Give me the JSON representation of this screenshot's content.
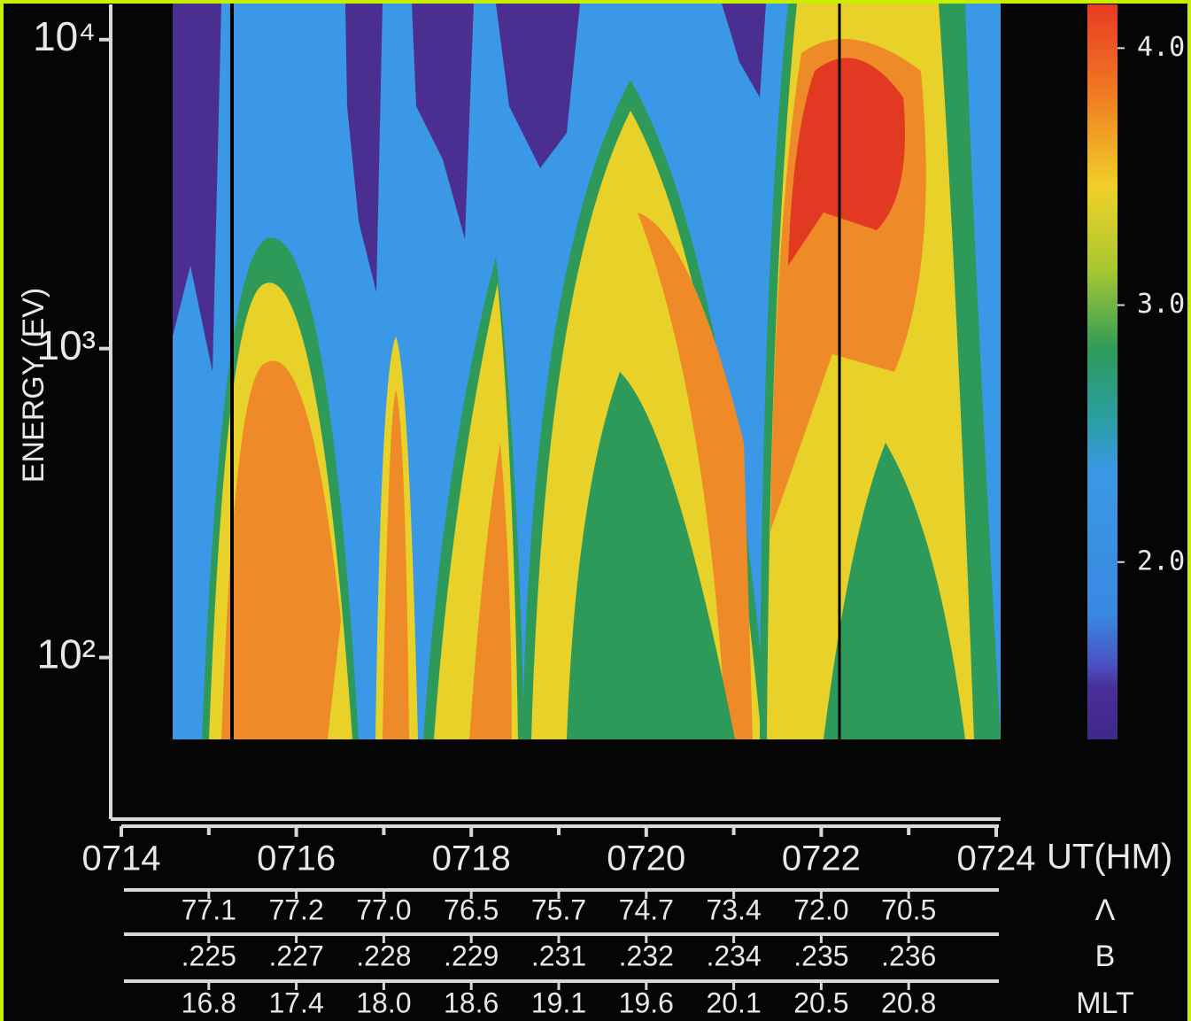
{
  "chart_data": {
    "type": "spectrogram",
    "ylabel": "ENERGY (EV)",
    "xlabel": "UT(HM)",
    "log_y": true,
    "ylim": [
      30,
      13000
    ],
    "yticks": [
      {
        "value": 100,
        "label": "10²"
      },
      {
        "value": 1000,
        "label": "10³"
      },
      {
        "value": 10000,
        "label": "10⁴"
      }
    ],
    "xlim": [
      714,
      724
    ],
    "xticks": [
      {
        "value": 714,
        "label": "0714"
      },
      {
        "value": 716,
        "label": "0716"
      },
      {
        "value": 718,
        "label": "0718"
      },
      {
        "value": 720,
        "label": "0720"
      },
      {
        "value": 722,
        "label": "0722"
      },
      {
        "value": 724,
        "label": "0724"
      }
    ],
    "xminorticks": [
      715,
      717,
      719,
      721,
      723
    ],
    "colorbar": {
      "lim": [
        1.31,
        4.17
      ],
      "ticks": [
        {
          "value": 4,
          "label": "4.0"
        },
        {
          "value": 3,
          "label": "3.0"
        },
        {
          "value": 2,
          "label": "2.0"
        }
      ]
    },
    "ephemeris": [
      {
        "name": "Λ",
        "values": [
          77.1,
          77.2,
          77.0,
          76.5,
          75.7,
          74.7,
          73.4,
          72.0,
          70.5
        ],
        "value_labels": [
          "77.1",
          "77.2",
          "77.0",
          "76.5",
          "75.7",
          "74.7",
          "73.4",
          "72.0",
          "70.5"
        ]
      },
      {
        "name": "B",
        "values": [
          0.225,
          0.227,
          0.228,
          0.229,
          0.231,
          0.232,
          0.234,
          0.235,
          0.236
        ],
        "value_labels": [
          ".225",
          ".227",
          ".228",
          ".229",
          ".231",
          ".232",
          ".234",
          ".235",
          ".236"
        ]
      },
      {
        "name": "MLT",
        "values": [
          16.8,
          17.4,
          18.0,
          18.6,
          19.1,
          19.6,
          20.1,
          20.5,
          20.8
        ],
        "value_labels": [
          "16.8",
          "17.4",
          "18.0",
          "18.6",
          "19.1",
          "19.6",
          "20.1",
          "20.5",
          "20.8"
        ]
      }
    ]
  }
}
